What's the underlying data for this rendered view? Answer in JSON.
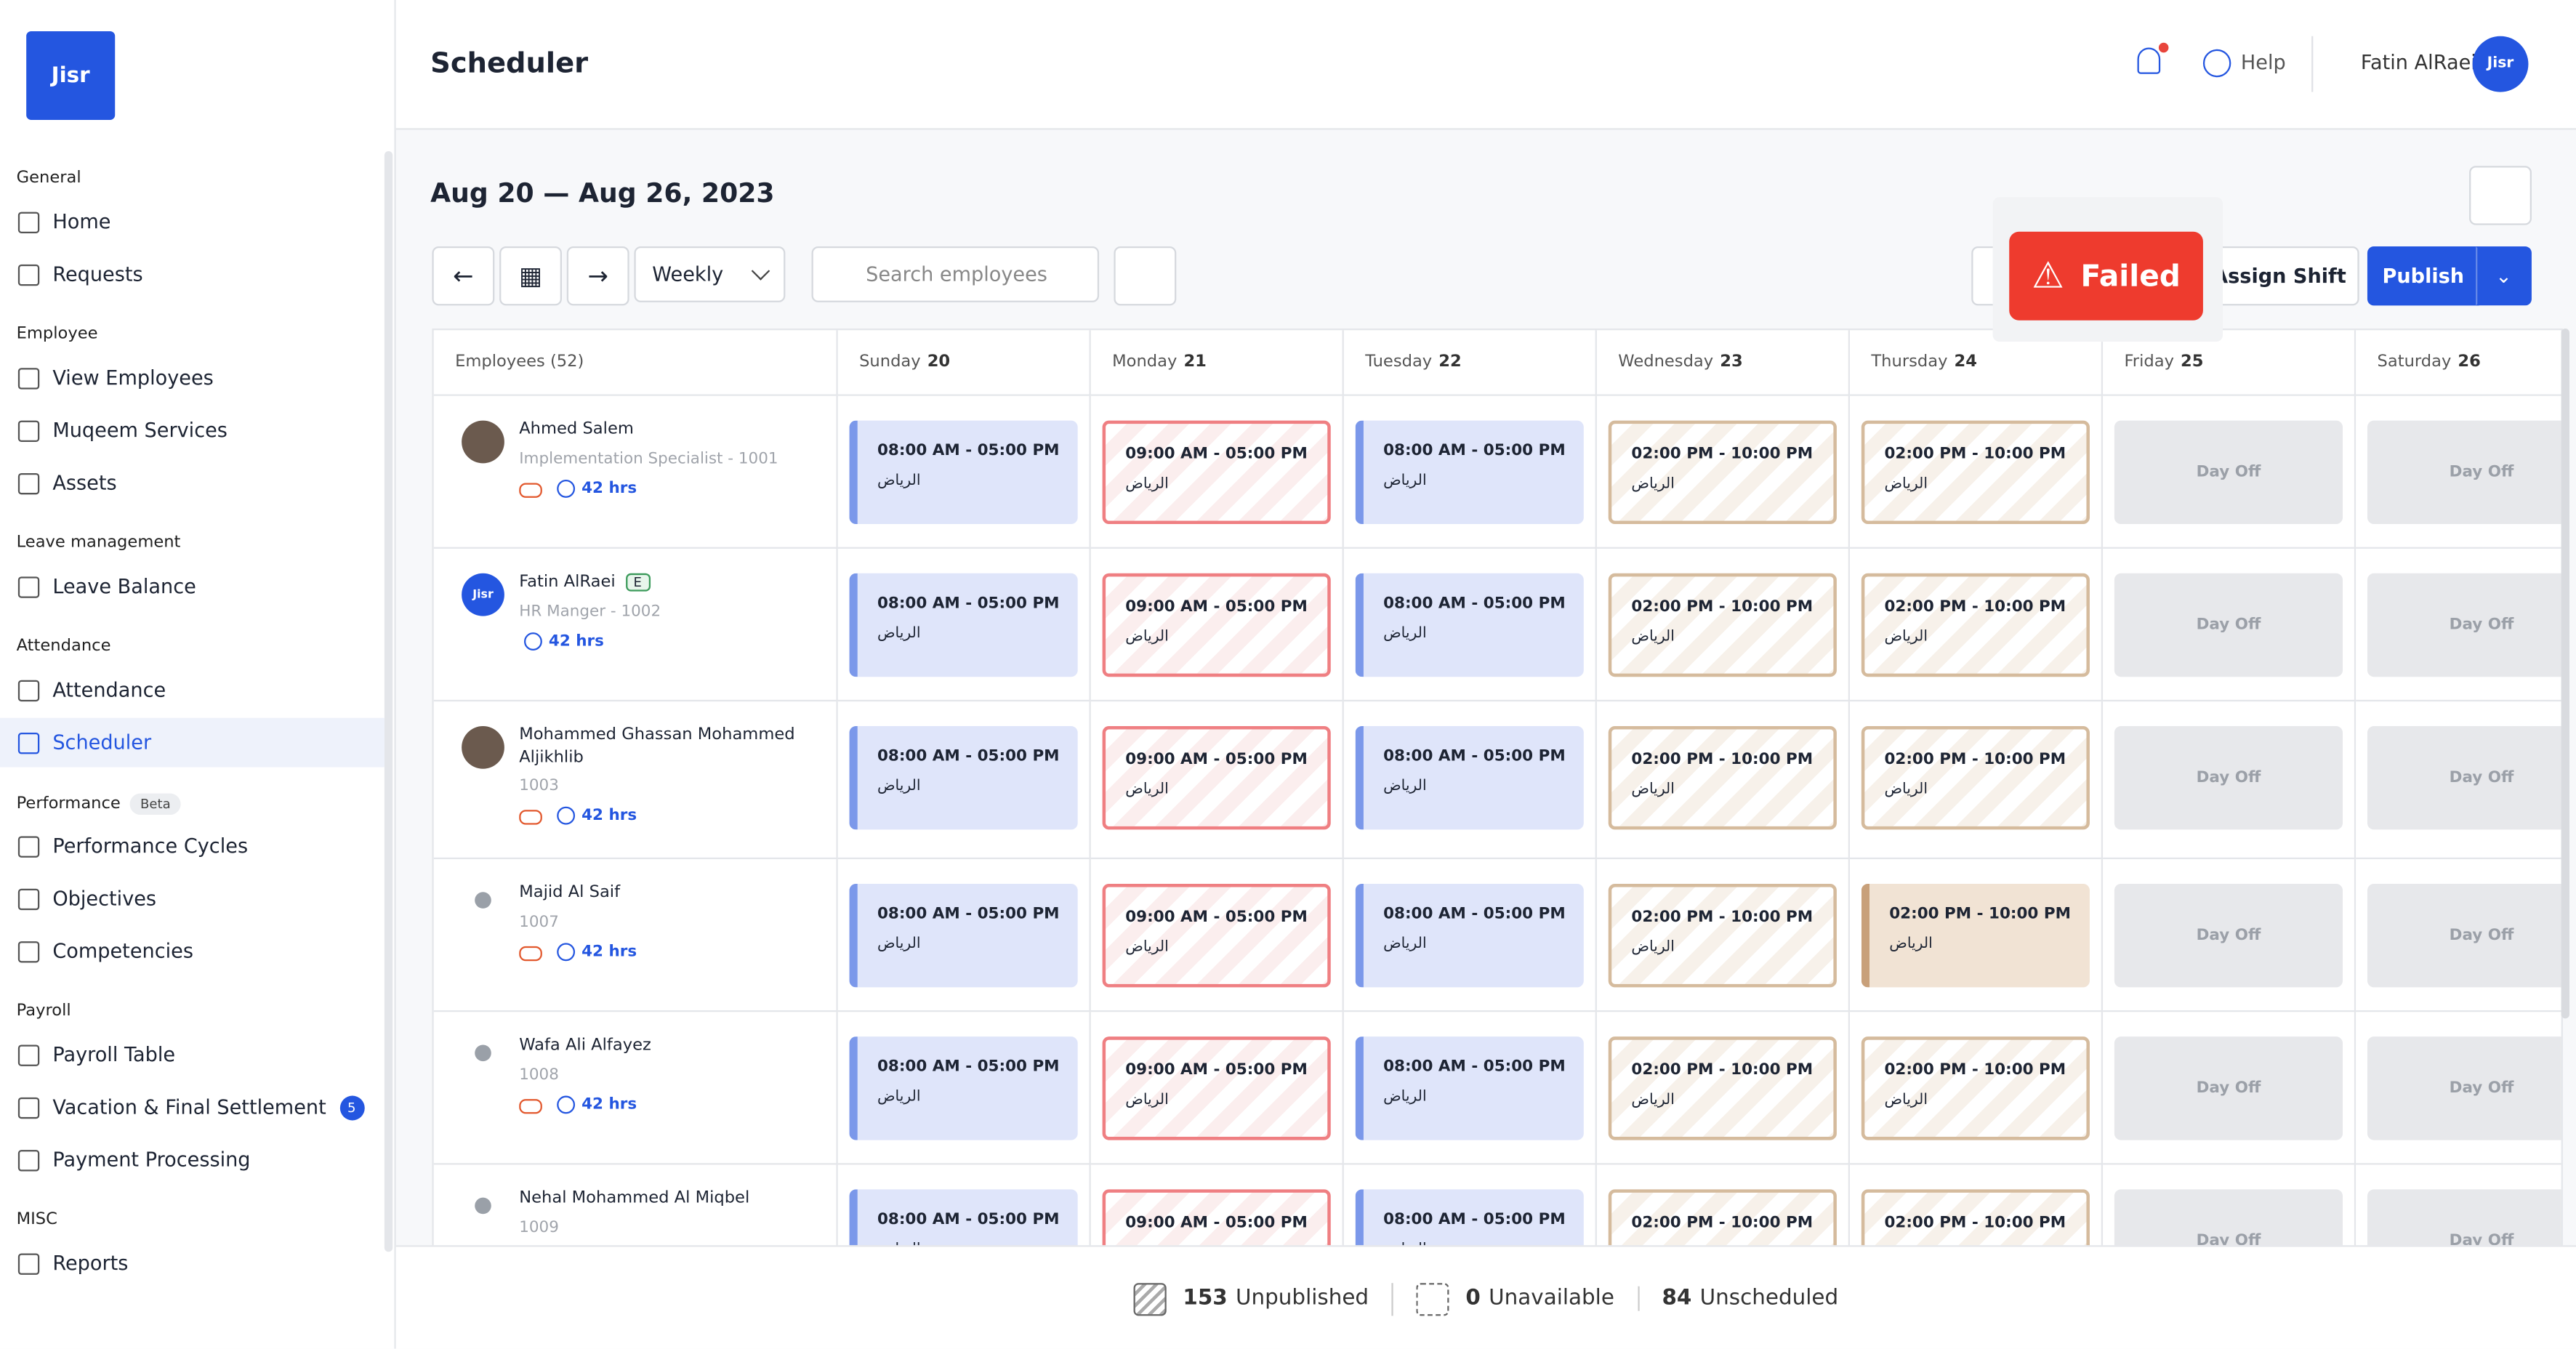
{
  "sidebar": {
    "logo": "Jisr",
    "sections": [
      {
        "title": "General",
        "items": [
          {
            "label": "Home"
          },
          {
            "label": "Requests"
          }
        ]
      },
      {
        "title": "Employee",
        "items": [
          {
            "label": "View Employees"
          },
          {
            "label": "Muqeem Services"
          },
          {
            "label": "Assets"
          }
        ]
      },
      {
        "title": "Leave management",
        "items": [
          {
            "label": "Leave Balance"
          }
        ]
      },
      {
        "title": "Attendance",
        "items": [
          {
            "label": "Attendance"
          },
          {
            "label": "Scheduler",
            "active": true
          }
        ]
      },
      {
        "title": "Performance",
        "badge": "Beta",
        "items": [
          {
            "label": "Performance Cycles"
          },
          {
            "label": "Objectives"
          },
          {
            "label": "Competencies"
          }
        ]
      },
      {
        "title": "Payroll",
        "items": [
          {
            "label": "Payroll Table"
          },
          {
            "label": "Vacation & Final Settlement",
            "badge": 5
          },
          {
            "label": "Payment Processing"
          }
        ]
      },
      {
        "title": "MISC",
        "items": [
          {
            "label": "Reports"
          }
        ]
      }
    ]
  },
  "header": {
    "title": "Scheduler",
    "help": "Help",
    "user": "Fatin AlRaei",
    "avatar": "Jisr"
  },
  "toolbar": {
    "date_range": "Aug 20 — Aug 26, 2023",
    "view": "Weekly",
    "search_placeholder": "Search employees",
    "assign": "Assign Shift",
    "publish": "Publish",
    "toast": "Failed"
  },
  "grid": {
    "employees_header": "Employees (52)",
    "days": [
      {
        "name": "Sunday",
        "date": 20
      },
      {
        "name": "Monday",
        "date": 21
      },
      {
        "name": "Tuesday",
        "date": 22
      },
      {
        "name": "Wednesday",
        "date": 23
      },
      {
        "name": "Thursday",
        "date": 24
      },
      {
        "name": "Friday",
        "date": 25
      },
      {
        "name": "Saturday",
        "date": 26
      }
    ],
    "rows": [
      {
        "name": "Ahmed Salem",
        "subtitle": "Implementation Specialist - 1001",
        "hours": "42 hrs",
        "shifts": [
          {
            "time": "08:00 AM - 05:00 PM",
            "place": "الرياض",
            "style": "blue"
          },
          {
            "time": "09:00 AM - 05:00 PM",
            "place": "الرياض",
            "style": "red"
          },
          {
            "time": "08:00 AM - 05:00 PM",
            "place": "الرياض",
            "style": "blue"
          },
          {
            "time": "02:00 PM - 10:00 PM",
            "place": "الرياض",
            "style": "tan"
          },
          {
            "time": "02:00 PM - 10:00 PM",
            "place": "الرياض",
            "style": "tan"
          },
          {
            "time": "Day Off",
            "style": "off"
          },
          {
            "time": "Day Off",
            "style": "off"
          }
        ]
      },
      {
        "name": "Fatin AlRaei",
        "badge": "E",
        "avatar": "Jisr",
        "subtitle": "HR Manger - 1002",
        "hours": "42 hrs",
        "shifts": [
          {
            "time": "08:00 AM - 05:00 PM",
            "place": "الرياض",
            "style": "blue"
          },
          {
            "time": "09:00 AM - 05:00 PM",
            "place": "الرياض",
            "style": "red"
          },
          {
            "time": "08:00 AM - 05:00 PM",
            "place": "الرياض",
            "style": "blue"
          },
          {
            "time": "02:00 PM - 10:00 PM",
            "place": "الرياض",
            "style": "tan"
          },
          {
            "time": "02:00 PM - 10:00 PM",
            "place": "الرياض",
            "style": "tan"
          },
          {
            "time": "Day Off",
            "style": "off"
          },
          {
            "time": "Day Off",
            "style": "off"
          }
        ]
      },
      {
        "name": "Mohammed Ghassan Mohammed Aljikhlib",
        "subtitle": "1003",
        "hours": "42 hrs",
        "shifts": [
          {
            "time": "08:00 AM - 05:00 PM",
            "place": "الرياض",
            "style": "blue"
          },
          {
            "time": "09:00 AM - 05:00 PM",
            "place": "الرياض",
            "style": "red"
          },
          {
            "time": "08:00 AM - 05:00 PM",
            "place": "الرياض",
            "style": "blue"
          },
          {
            "time": "02:00 PM - 10:00 PM",
            "place": "الرياض",
            "style": "tan"
          },
          {
            "time": "02:00 PM - 10:00 PM",
            "place": "الرياض",
            "style": "tan"
          },
          {
            "time": "Day Off",
            "style": "off"
          },
          {
            "time": "Day Off",
            "style": "off"
          }
        ]
      },
      {
        "name": "Majid Al Saif",
        "subtitle": "1007",
        "hours": "42 hrs",
        "shifts": [
          {
            "time": "08:00 AM - 05:00 PM",
            "place": "الرياض",
            "style": "blue"
          },
          {
            "time": "09:00 AM - 05:00 PM",
            "place": "الرياض",
            "style": "red"
          },
          {
            "time": "08:00 AM - 05:00 PM",
            "place": "الرياض",
            "style": "blue"
          },
          {
            "time": "02:00 PM - 10:00 PM",
            "place": "الرياض",
            "style": "tan"
          },
          {
            "time": "02:00 PM - 10:00 PM",
            "place": "الرياض",
            "style": "tanfill"
          },
          {
            "time": "Day Off",
            "style": "off"
          },
          {
            "time": "Day Off",
            "style": "off"
          }
        ]
      },
      {
        "name": "Wafa Ali Alfayez",
        "subtitle": "1008",
        "hours": "42 hrs",
        "shifts": [
          {
            "time": "08:00 AM - 05:00 PM",
            "place": "الرياض",
            "style": "blue"
          },
          {
            "time": "09:00 AM - 05:00 PM",
            "place": "الرياض",
            "style": "red"
          },
          {
            "time": "08:00 AM - 05:00 PM",
            "place": "الرياض",
            "style": "blue"
          },
          {
            "time": "02:00 PM - 10:00 PM",
            "place": "الرياض",
            "style": "tan"
          },
          {
            "time": "02:00 PM - 10:00 PM",
            "place": "الرياض",
            "style": "tan"
          },
          {
            "time": "Day Off",
            "style": "off"
          },
          {
            "time": "Day Off",
            "style": "off"
          }
        ]
      },
      {
        "name": "Nehal Mohammed Al Miqbel",
        "subtitle": "1009",
        "shifts": [
          {
            "time": "08:00 AM - 05:00 PM",
            "place": "الرياض",
            "style": "blue"
          },
          {
            "time": "09:00 AM - 05:00 PM",
            "place": "الرياض",
            "style": "red"
          },
          {
            "time": "08:00 AM - 05:00 PM",
            "place": "الرياض",
            "style": "blue"
          },
          {
            "time": "02:00 PM - 10:00 PM",
            "place": "الرياض",
            "style": "tan"
          },
          {
            "time": "02:00 PM - 10:00 PM",
            "place": "الرياض",
            "style": "tan"
          },
          {
            "time": "Day Off",
            "style": "off"
          },
          {
            "time": "Day Off",
            "style": "off"
          }
        ]
      }
    ]
  },
  "footer": {
    "stats": [
      {
        "count": 153,
        "label": "Unpublished"
      },
      {
        "count": 0,
        "label": "Unavailable"
      },
      {
        "count": 84,
        "label": "Unscheduled"
      }
    ]
  }
}
